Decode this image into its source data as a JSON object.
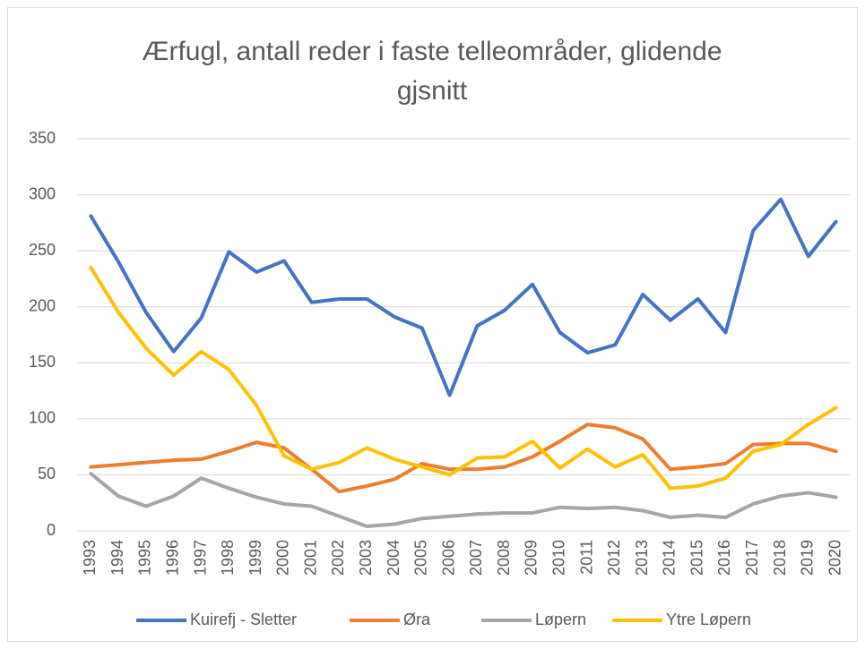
{
  "chart_data": {
    "type": "line",
    "title": "Ærfugl, antall reder i faste telleområder, glidende gjsnitt",
    "categories": [
      "1993",
      "1994",
      "1995",
      "1996",
      "1997",
      "1998",
      "1999",
      "2000",
      "2001",
      "2002",
      "2003",
      "2004",
      "2005",
      "2006",
      "2007",
      "2008",
      "2009",
      "2010",
      "2011",
      "2012",
      "2013",
      "2014",
      "2015",
      "2016",
      "2017",
      "2018",
      "2019",
      "2020"
    ],
    "series": [
      {
        "name": "Kuirefj - Sletter",
        "color": "#4472c4",
        "values": [
          281,
          240,
          195,
          160,
          190,
          249,
          231,
          241,
          204,
          207,
          207,
          191,
          181,
          121,
          183,
          197,
          220,
          177,
          159,
          166,
          211,
          188,
          207,
          177,
          268,
          296,
          245,
          276
        ]
      },
      {
        "name": "Øra",
        "color": "#ed7d31",
        "values": [
          57,
          59,
          61,
          63,
          64,
          71,
          79,
          74,
          55,
          35,
          40,
          46,
          60,
          55,
          55,
          57,
          66,
          80,
          95,
          92,
          82,
          55,
          57,
          60,
          77,
          78,
          78,
          71
        ]
      },
      {
        "name": "Løpern",
        "color": "#a5a5a5",
        "values": [
          51,
          31,
          22,
          31,
          47,
          38,
          30,
          24,
          22,
          13,
          4,
          6,
          11,
          13,
          15,
          16,
          16,
          21,
          20,
          21,
          18,
          12,
          14,
          12,
          24,
          31,
          34,
          30
        ]
      },
      {
        "name": "Ytre Løpern",
        "color": "#ffc000",
        "values": [
          235,
          195,
          163,
          139,
          160,
          144,
          112,
          67,
          55,
          61,
          74,
          64,
          57,
          50,
          65,
          66,
          80,
          56,
          73,
          57,
          68,
          38,
          40,
          47,
          71,
          77,
          95,
          110
        ]
      }
    ],
    "ylim": [
      0,
      350
    ],
    "yticks": [
      0,
      50,
      100,
      150,
      200,
      250,
      300,
      350
    ],
    "grid": true,
    "legend": "bottom"
  }
}
